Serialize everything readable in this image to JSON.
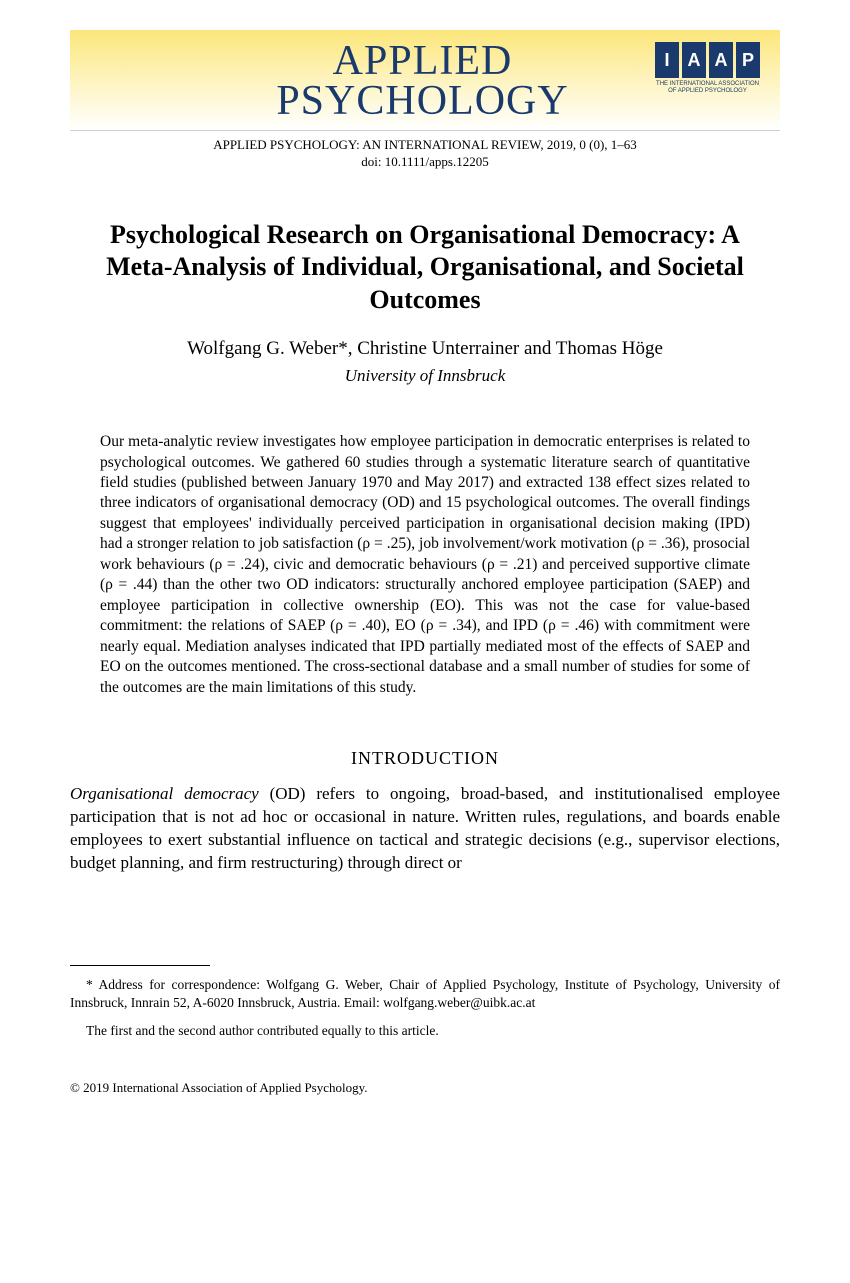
{
  "banner": {
    "journal_line1": "APPLIED",
    "journal_line2": "PSYCHOLOGY",
    "logo_letters": [
      "I",
      "A",
      "A",
      "P"
    ],
    "logo_caption_line1": "THE INTERNATIONAL ASSOCIATION",
    "logo_caption_line2": "OF APPLIED PSYCHOLOGY",
    "banner_gradient_top": "#fce67a",
    "banner_gradient_bottom": "#ffffff",
    "brand_color": "#1a3a6e"
  },
  "citation": {
    "line1": "APPLIED PSYCHOLOGY: AN INTERNATIONAL REVIEW, 2019, 0 (0), 1–63",
    "line2": "doi: 10.1111/apps.12205"
  },
  "title": "Psychological Research on Organisational Democracy: A Meta-Analysis of Individual, Organisational, and Societal Outcomes",
  "authors": "Wolfgang G. Weber*, Christine Unterrainer and Thomas Höge",
  "affiliation": "University of Innsbruck",
  "abstract": "Our meta-analytic review investigates how employee participation in democratic enterprises is related to psychological outcomes. We gathered 60 studies through a systematic literature search of quantitative field studies (published between January 1970 and May 2017) and extracted 138 effect sizes related to three indicators of organisational democracy (OD) and 15 psychological outcomes. The overall findings suggest that employees' individually perceived participation in organisational decision making (IPD) had a stronger relation to job satisfaction (ρ = .25), job involvement/work motivation (ρ = .36), prosocial work behaviours (ρ = .24), civic and democratic behaviours (ρ = .21) and perceived supportive climate (ρ = .44) than the other two OD indicators: structurally anchored employee participation (SAEP) and employee participation in collective ownership (EO). This was not the case for value-based commitment: the relations of SAEP (ρ = .40), EO (ρ = .34), and IPD (ρ = .46) with commitment were nearly equal. Mediation analyses indicated that IPD partially mediated most of the effects of SAEP and EO on the outcomes mentioned. The cross-sectional database and a small number of studies for some of the outcomes are the main limitations of this study.",
  "section_heading": "INTRODUCTION",
  "intro_lead_term": "Organisational democracy",
  "intro_body": " (OD) refers to ongoing, broad-based, and institutionalised employee participation that is not ad hoc or occasional in nature. Written rules, regulations, and boards enable employees to exert substantial influence on tactical and strategic decisions (e.g., supervisor elections, budget planning, and firm restructuring) through direct or",
  "footnotes": {
    "correspondence": "* Address for correspondence: Wolfgang G. Weber, Chair of Applied Psychology, Institute of Psychology, University of Innsbruck, Innrain 52, A-6020 Innsbruck, Austria. Email: wolfgang.weber@uibk.ac.at",
    "contribution": "The first and the second author contributed equally to this article."
  },
  "copyright": "© 2019 International Association of Applied Psychology.",
  "typography": {
    "title_fontsize": 26,
    "body_fontsize": 17,
    "abstract_fontsize": 15.5,
    "footnote_fontsize": 13.5,
    "font_family": "Georgia, Times New Roman, serif",
    "text_color": "#000000",
    "background_color": "#ffffff"
  }
}
